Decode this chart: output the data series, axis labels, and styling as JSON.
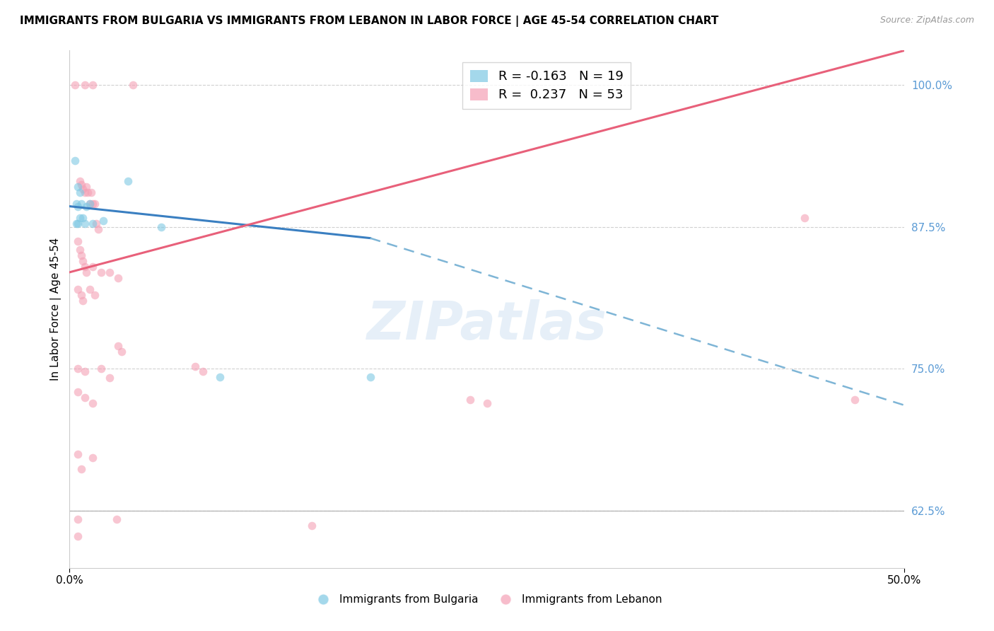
{
  "title": "IMMIGRANTS FROM BULGARIA VS IMMIGRANTS FROM LEBANON IN LABOR FORCE | AGE 45-54 CORRELATION CHART",
  "source": "Source: ZipAtlas.com",
  "ylabel": "In Labor Force | Age 45-54",
  "legend_r_bulgaria": "-0.163",
  "legend_n_bulgaria": "19",
  "legend_r_lebanon": "0.237",
  "legend_n_lebanon": "53",
  "xlim": [
    0.0,
    0.5
  ],
  "ylim": [
    0.575,
    1.03
  ],
  "yticks": [
    0.625,
    0.75,
    0.875,
    1.0
  ],
  "ytick_labels": [
    "62.5%",
    "75.0%",
    "87.5%",
    "100.0%"
  ],
  "xtick_vals": [
    0.0,
    0.5
  ],
  "xtick_labels": [
    "0.0%",
    "50.0%"
  ],
  "bulgaria_color": "#7ec8e3",
  "lebanon_color": "#f4a0b5",
  "trendline_bulgaria_solid_color": "#3a7fc1",
  "trendline_bulgaria_dash_color": "#7eb5d6",
  "trendline_lebanon_color": "#e8607a",
  "yaxis_label_color": "#5b9bd5",
  "watermark_text": "ZIPatlas",
  "bulgaria_points": [
    [
      0.003,
      0.933
    ],
    [
      0.004,
      0.895
    ],
    [
      0.004,
      0.878
    ],
    [
      0.005,
      0.91
    ],
    [
      0.005,
      0.893
    ],
    [
      0.005,
      0.878
    ],
    [
      0.006,
      0.905
    ],
    [
      0.006,
      0.883
    ],
    [
      0.007,
      0.895
    ],
    [
      0.008,
      0.883
    ],
    [
      0.009,
      0.878
    ],
    [
      0.01,
      0.893
    ],
    [
      0.012,
      0.895
    ],
    [
      0.014,
      0.878
    ],
    [
      0.02,
      0.88
    ],
    [
      0.035,
      0.915
    ],
    [
      0.055,
      0.875
    ],
    [
      0.09,
      0.743
    ],
    [
      0.18,
      0.743
    ]
  ],
  "lebanon_points": [
    [
      0.003,
      1.0
    ],
    [
      0.009,
      1.0
    ],
    [
      0.014,
      1.0
    ],
    [
      0.038,
      1.0
    ],
    [
      0.006,
      0.915
    ],
    [
      0.007,
      0.912
    ],
    [
      0.008,
      0.908
    ],
    [
      0.009,
      0.905
    ],
    [
      0.01,
      0.91
    ],
    [
      0.011,
      0.905
    ],
    [
      0.012,
      0.895
    ],
    [
      0.013,
      0.905
    ],
    [
      0.014,
      0.895
    ],
    [
      0.015,
      0.895
    ],
    [
      0.016,
      0.878
    ],
    [
      0.017,
      0.873
    ],
    [
      0.005,
      0.862
    ],
    [
      0.006,
      0.855
    ],
    [
      0.007,
      0.85
    ],
    [
      0.008,
      0.845
    ],
    [
      0.009,
      0.84
    ],
    [
      0.01,
      0.835
    ],
    [
      0.014,
      0.84
    ],
    [
      0.019,
      0.835
    ],
    [
      0.024,
      0.835
    ],
    [
      0.029,
      0.83
    ],
    [
      0.005,
      0.82
    ],
    [
      0.007,
      0.815
    ],
    [
      0.008,
      0.81
    ],
    [
      0.012,
      0.82
    ],
    [
      0.015,
      0.815
    ],
    [
      0.005,
      0.75
    ],
    [
      0.009,
      0.748
    ],
    [
      0.019,
      0.75
    ],
    [
      0.024,
      0.742
    ],
    [
      0.029,
      0.77
    ],
    [
      0.031,
      0.765
    ],
    [
      0.005,
      0.73
    ],
    [
      0.009,
      0.725
    ],
    [
      0.014,
      0.72
    ],
    [
      0.075,
      0.752
    ],
    [
      0.08,
      0.748
    ],
    [
      0.005,
      0.675
    ],
    [
      0.014,
      0.672
    ],
    [
      0.007,
      0.662
    ],
    [
      0.005,
      0.618
    ],
    [
      0.005,
      0.603
    ],
    [
      0.028,
      0.618
    ],
    [
      0.145,
      0.612
    ],
    [
      0.24,
      0.723
    ],
    [
      0.25,
      0.72
    ],
    [
      0.44,
      0.883
    ],
    [
      0.47,
      0.723
    ]
  ],
  "bulgaria_trend_x0": 0.0,
  "bulgaria_trend_y0": 0.893,
  "bulgaria_trend_x1": 0.18,
  "bulgaria_trend_y1": 0.865,
  "bulgaria_trend_dash_x0": 0.18,
  "bulgaria_trend_dash_y0": 0.865,
  "bulgaria_trend_dash_x1": 0.5,
  "bulgaria_trend_dash_y1": 0.718,
  "lebanon_trend_x0": 0.0,
  "lebanon_trend_y0": 0.835,
  "lebanon_trend_x1": 0.5,
  "lebanon_trend_y1": 1.03
}
